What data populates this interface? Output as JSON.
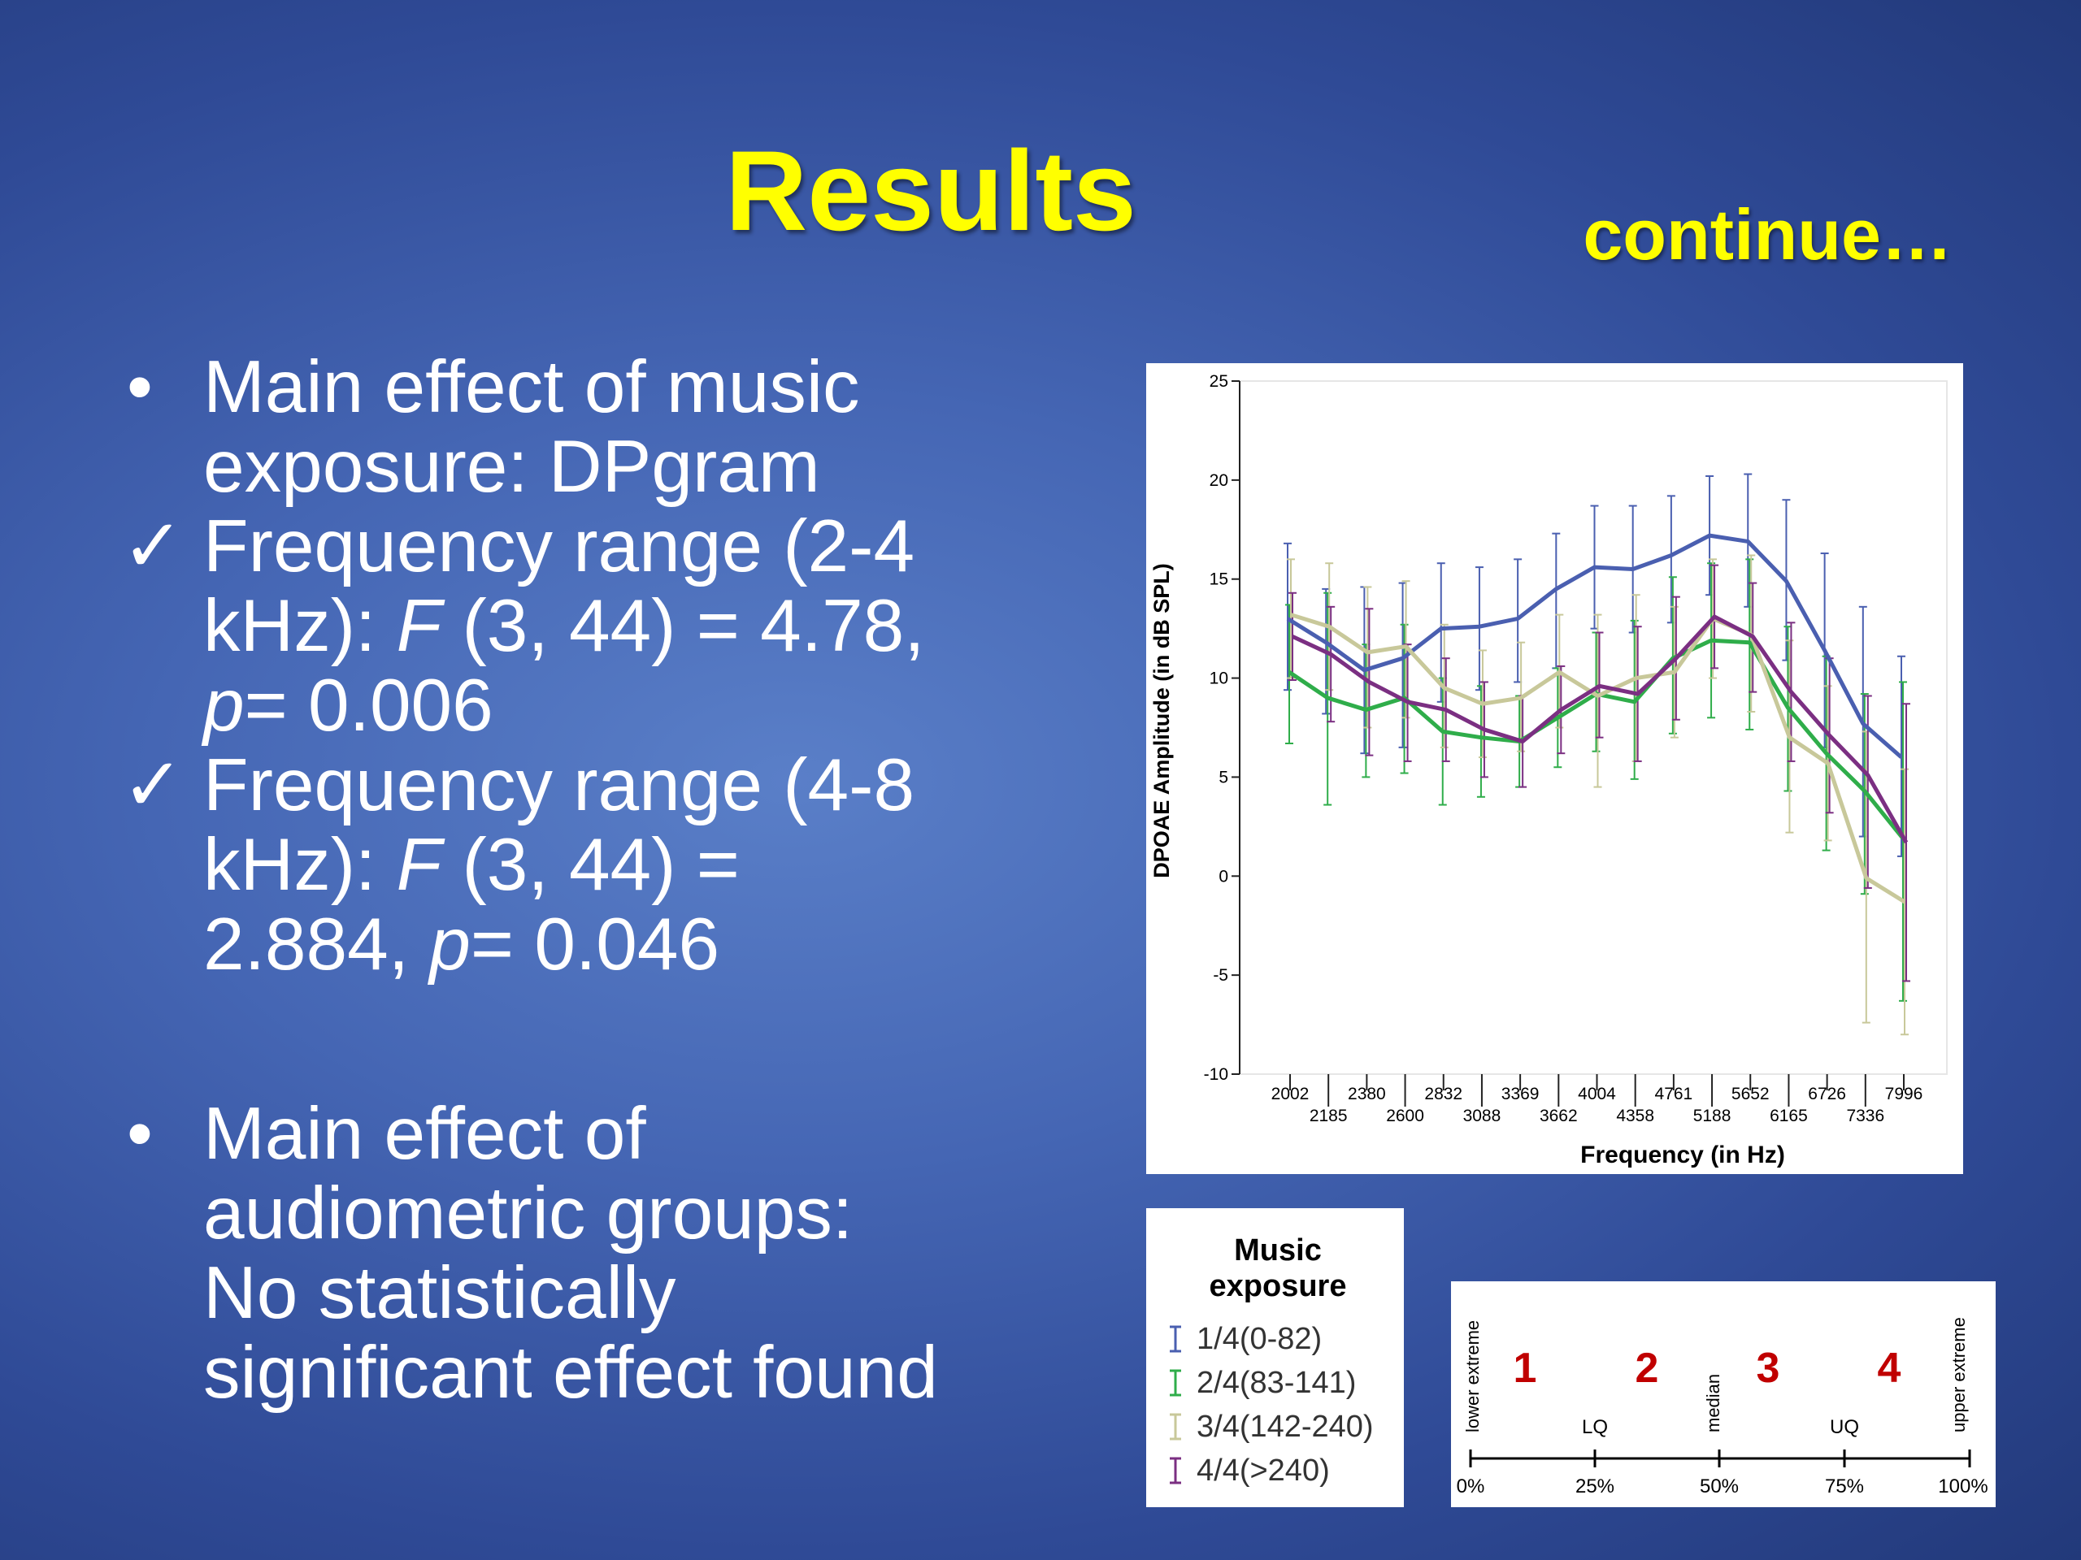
{
  "slide": {
    "title": "Results",
    "subtitle": "continue…",
    "bullets": [
      {
        "marker": "•",
        "lines": [
          "Main effect of music",
          "exposure: DPgram"
        ]
      },
      {
        "marker": "✓",
        "line1": "Frequency range (2-4",
        "line2_a": "kHz): ",
        "line2_f": "F",
        "line2_b": " (3, 44) = 4.78,",
        "line3_p": "p",
        "line3_b": "= 0.006"
      },
      {
        "marker": "✓",
        "line1": "Frequency range (4-8",
        "line2_a": "kHz): ",
        "line2_f": "F",
        "line2_b": " (3, 44) =",
        "line3_a": "2.884, ",
        "line3_p": "p",
        "line3_b": "= 0.046"
      },
      {
        "marker": "•",
        "lines": [
          "Main effect of",
          "audiometric groups:",
          "No statistically",
          "significant effect found"
        ]
      }
    ]
  },
  "chart_data": {
    "type": "line",
    "xlabel": "Frequency (in Hz)",
    "ylabel": "DPOAE Amplitude (in dB SPL)",
    "ylim": [
      -10,
      25
    ],
    "yticks": [
      -10,
      -5,
      0,
      5,
      10,
      15,
      20,
      25
    ],
    "x": [
      2002,
      2185,
      2380,
      2600,
      2832,
      3088,
      3369,
      3662,
      4004,
      4358,
      4761,
      5188,
      5652,
      6165,
      6726,
      7336,
      7996
    ],
    "error_bars": true,
    "series": [
      {
        "name": "1/4(0-82)",
        "color": "#4a5fb0",
        "values": [
          13.0,
          11.8,
          10.4,
          11.0,
          12.5,
          12.6,
          13.0,
          14.5,
          15.6,
          15.5,
          16.2,
          17.2,
          16.9,
          14.9,
          11.4,
          7.7,
          6.0
        ],
        "lower": [
          9.4,
          8.2,
          6.2,
          6.5,
          8.8,
          9.4,
          9.8,
          10.5,
          12.5,
          12.3,
          12.8,
          14.2,
          13.6,
          10.9,
          6.5,
          2.0,
          1.0
        ],
        "upper": [
          16.8,
          14.5,
          14.6,
          14.8,
          15.8,
          15.6,
          16.0,
          17.3,
          18.7,
          18.7,
          19.2,
          20.2,
          20.3,
          19.0,
          16.3,
          13.6,
          11.1
        ]
      },
      {
        "name": "2/4(83-141)",
        "color": "#2fad4a",
        "values": [
          10.3,
          9.0,
          8.4,
          9.0,
          7.3,
          7.0,
          6.8,
          8.0,
          9.2,
          8.8,
          11.0,
          11.9,
          11.8,
          8.5,
          6.2,
          4.3,
          1.9
        ],
        "lower": [
          6.7,
          3.6,
          5.0,
          5.2,
          3.6,
          4.0,
          4.5,
          5.5,
          6.3,
          4.9,
          7.2,
          8.0,
          7.4,
          4.3,
          1.3,
          -0.9,
          -6.3
        ],
        "upper": [
          13.7,
          14.3,
          11.7,
          12.7,
          10.0,
          9.6,
          9.1,
          10.5,
          12.3,
          12.9,
          15.1,
          15.8,
          16.0,
          12.6,
          11.1,
          9.2,
          9.8
        ]
      },
      {
        "name": "3/4(142-240)",
        "color": "#c8c89a",
        "values": [
          13.2,
          12.6,
          11.3,
          11.6,
          9.5,
          8.7,
          9.0,
          10.3,
          9.1,
          10.0,
          10.3,
          13.0,
          12.2,
          7.0,
          5.7,
          -0.1,
          -1.3
        ],
        "lower": [
          10.0,
          9.4,
          7.5,
          8.0,
          6.5,
          6.0,
          6.3,
          7.5,
          4.5,
          5.8,
          7.0,
          10.0,
          8.3,
          2.2,
          1.8,
          -7.4,
          -8.0
        ],
        "upper": [
          16.0,
          15.8,
          14.6,
          14.9,
          12.7,
          11.4,
          11.8,
          13.2,
          13.2,
          14.2,
          13.6,
          16.0,
          16.2,
          11.9,
          9.6,
          7.3,
          5.4
        ]
      },
      {
        "name": "4/4(>240)",
        "color": "#7b2f82",
        "values": [
          12.1,
          11.2,
          9.8,
          8.8,
          8.4,
          7.4,
          6.8,
          8.4,
          9.6,
          9.2,
          11.0,
          13.1,
          12.1,
          9.3,
          7.1,
          5.1,
          1.7
        ],
        "lower": [
          9.9,
          7.8,
          6.1,
          5.8,
          5.8,
          5.0,
          4.5,
          6.2,
          7.0,
          5.8,
          7.9,
          10.5,
          9.3,
          5.8,
          3.2,
          -0.6,
          -5.3
        ],
        "upper": [
          14.3,
          13.6,
          13.5,
          11.7,
          11.0,
          9.8,
          9.1,
          10.6,
          12.3,
          12.6,
          14.1,
          15.7,
          14.8,
          12.8,
          11.0,
          9.1,
          8.7
        ]
      }
    ]
  },
  "legend": {
    "title_line1": "Music",
    "title_line2": "exposure",
    "items": [
      "1/4(0-82)",
      "2/4(83-141)",
      "3/4(142-240)",
      "4/4(>240)"
    ]
  },
  "quartile_scale": {
    "numbers": [
      "1",
      "2",
      "3",
      "4"
    ],
    "number_color": "#c00000",
    "end_labels": [
      "lower extreme",
      "median",
      "upper extreme"
    ],
    "mid_labels": [
      "LQ",
      "UQ"
    ],
    "percent_labels": [
      "0%",
      "25%",
      "50%",
      "75%",
      "100%"
    ]
  }
}
